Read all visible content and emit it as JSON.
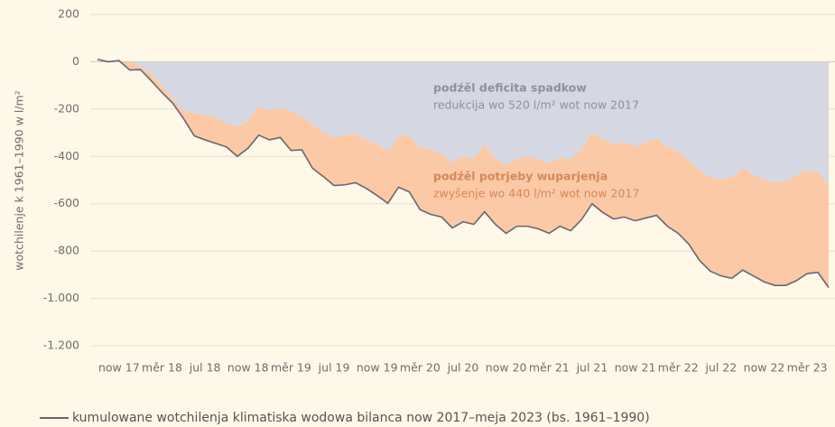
{
  "chart_data": {
    "type": "area",
    "ylabel": "wotchilenje k 1961–1990 w l/m²",
    "categories": [
      null,
      null,
      "now 17",
      null,
      null,
      null,
      "měr 18",
      null,
      null,
      null,
      "jul 18",
      null,
      null,
      null,
      "now 18",
      null,
      null,
      null,
      "měr 19",
      null,
      null,
      null,
      "jul 19",
      null,
      null,
      null,
      "now 19",
      null,
      null,
      null,
      "měr 20",
      null,
      null,
      null,
      "jul 20",
      null,
      null,
      null,
      "now 20",
      null,
      null,
      null,
      "měr 21",
      null,
      null,
      null,
      "jul 21",
      null,
      null,
      null,
      "now 21",
      null,
      null,
      null,
      "měr 22",
      null,
      null,
      null,
      "jul 22",
      null,
      null,
      null,
      "now 22",
      null,
      null,
      null,
      "měr 23",
      null,
      null
    ],
    "series": [
      {
        "name": "podźěl deficita spadkow",
        "color": "#d5d8e2",
        "stacked": true,
        "values": [
          0,
          0,
          0,
          0,
          -20,
          -50,
          -100,
          -160,
          -205,
          -218,
          -225,
          -237,
          -260,
          -275,
          -250,
          -190,
          -205,
          -195,
          -210,
          -230,
          -265,
          -300,
          -320,
          -310,
          -305,
          -330,
          -350,
          -380,
          -313,
          -313,
          -363,
          -370,
          -390,
          -427,
          -400,
          -410,
          -350,
          -410,
          -437,
          -410,
          -400,
          -412,
          -427,
          -405,
          -412,
          -370,
          -300,
          -325,
          -350,
          -340,
          -360,
          -340,
          -325,
          -360,
          -380,
          -420,
          -458,
          -490,
          -495,
          -490,
          -450,
          -477,
          -496,
          -511,
          -505,
          -480,
          -458,
          -465,
          -523
        ]
      },
      {
        "name": "podźěl potrjeby wuparjenja",
        "color": "#fbc9a6",
        "stacked": true,
        "values": [
          0,
          0,
          0,
          -35,
          -13,
          -30,
          -30,
          -15,
          -35,
          -95,
          -105,
          -108,
          -100,
          -125,
          -115,
          -120,
          -125,
          -125,
          -165,
          -142,
          -185,
          -185,
          -203,
          -210,
          -206,
          -205,
          -215,
          -218,
          -217,
          -237,
          -262,
          -275,
          -266,
          -275,
          -276,
          -277,
          -284,
          -277,
          -288,
          -285,
          -295,
          -294,
          -298,
          -290,
          -302,
          -298,
          -300,
          -312,
          -314,
          -316,
          -312,
          -320,
          -324,
          -335,
          -345,
          -351,
          -382,
          -395,
          -410,
          -425,
          -430,
          -428,
          -434,
          -434,
          -440,
          -445,
          -437,
          -425,
          -431
        ]
      },
      {
        "name": "kumulowane wotchilenja klimatiska wodowa bilanca now 2017–meja 2023 (bs. 1961–1990)",
        "color": "#6b6570",
        "stacked": false,
        "values": [
          10,
          0,
          5,
          -35,
          -33,
          -80,
          -130,
          -175,
          -240,
          -313,
          -330,
          -345,
          -360,
          -400,
          -365,
          -310,
          -330,
          -320,
          -375,
          -372,
          -450,
          -485,
          -523,
          -520,
          -511,
          -535,
          -565,
          -598,
          -530,
          -550,
          -625,
          -645,
          -656,
          -702,
          -676,
          -687,
          -634,
          -687,
          -725,
          -695,
          -695,
          -706,
          -725,
          -695,
          -714,
          -668,
          -600,
          -637,
          -664,
          -656,
          -672,
          -660,
          -649,
          -695,
          -725,
          -771,
          -840,
          -885,
          -905,
          -915,
          -880,
          -905,
          -930,
          -945,
          -945,
          -925,
          -895,
          -890,
          -954
        ]
      }
    ],
    "annotations": [
      "redukcija wo 520 l/m² wot now 2017",
      "zwyšenje wo 440 l/m² wot now 2017"
    ],
    "ylim": [
      -1200,
      200
    ],
    "yticks": [
      {
        "value": -1200,
        "label": "-1.200"
      },
      {
        "value": -1000,
        "label": "-1.000"
      },
      -800,
      -600,
      -400,
      -200,
      0,
      200
    ],
    "grid": true
  }
}
